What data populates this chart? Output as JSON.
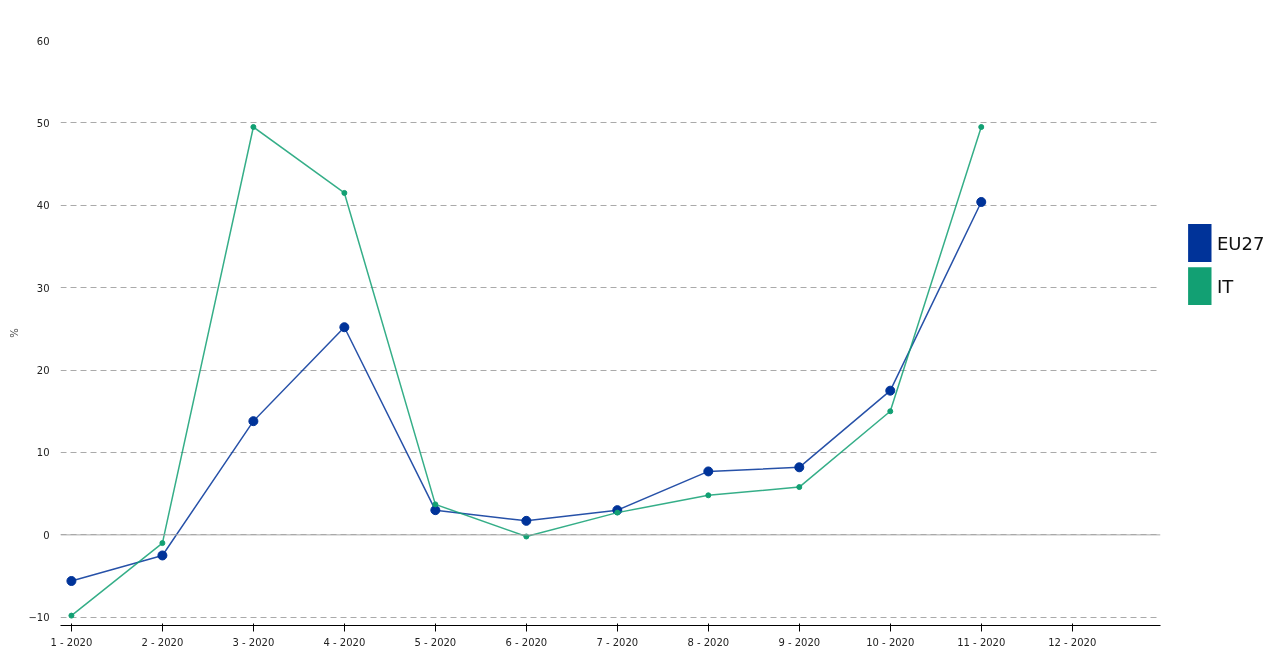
{
  "chart_data": {
    "type": "line",
    "ylabel": "%",
    "categories": [
      "1 - 2020",
      "2 - 2020",
      "3 - 2020",
      "4 - 2020",
      "5 - 2020",
      "6 - 2020",
      "7 - 2020",
      "8 - 2020",
      "9 - 2020",
      "10 - 2020",
      "11 - 2020",
      "12 - 2020"
    ],
    "series": [
      {
        "name": "EU27",
        "color": "#003399",
        "values": [
          -5.6,
          -2.5,
          13.8,
          25.2,
          3.0,
          1.7,
          3.0,
          7.7,
          8.2,
          17.5,
          40.4,
          null
        ]
      },
      {
        "name": "IT",
        "color": "#12a073",
        "values": [
          -9.8,
          -1.0,
          49.5,
          41.5,
          3.7,
          -0.2,
          2.7,
          4.8,
          5.8,
          15.0,
          49.5,
          null
        ]
      }
    ],
    "ylim": [
      -11,
      60
    ],
    "yticks": [
      -10,
      0,
      10,
      20,
      30,
      40,
      50,
      60
    ],
    "grid": "y",
    "legend": "right",
    "marker": "circle",
    "line_style": "solid",
    "ref_lines": [
      {
        "axis": "y",
        "value": 0,
        "color": "#aaaaaa"
      }
    ]
  }
}
